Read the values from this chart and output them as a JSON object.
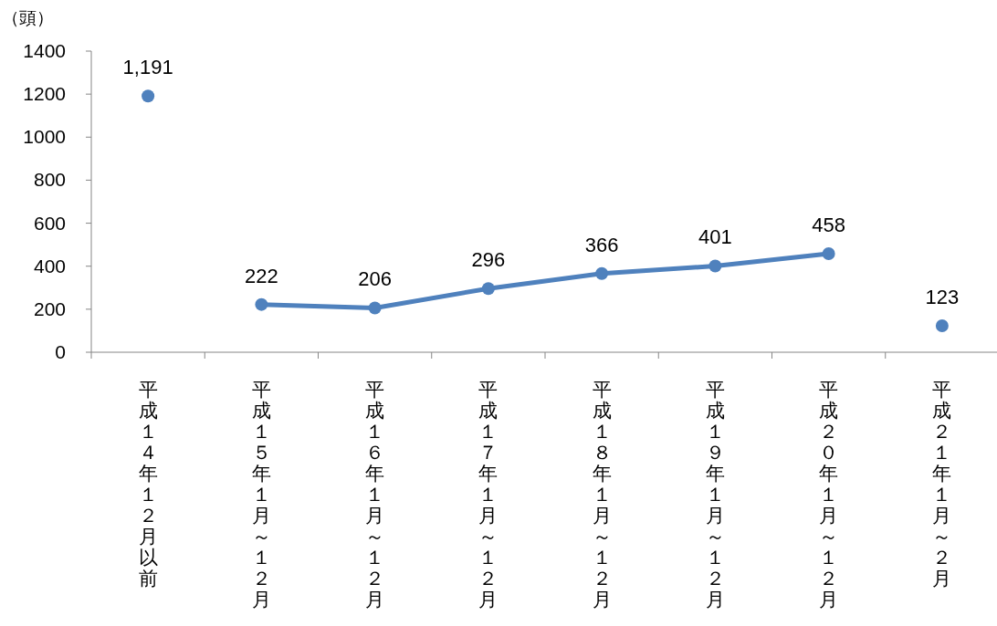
{
  "chart_data": {
    "type": "line",
    "ylabel": "（頭）",
    "categories": [
      "平成１４年１２月以前",
      "平成１５年１月～１２月",
      "平成１６年１月～１２月",
      "平成１７年１月～１２月",
      "平成１８年１月～１２月",
      "平成１９年１月～１２月",
      "平成２０年１月～１２月",
      "平成２１年１月～２月"
    ],
    "series": [
      {
        "type": "scatter",
        "color": "#4f81bd",
        "values": [
          1191,
          null,
          null,
          null,
          null,
          null,
          null,
          123
        ],
        "value_labels": [
          "1,191",
          null,
          null,
          null,
          null,
          null,
          null,
          "123"
        ]
      },
      {
        "type": "line",
        "color": "#4f81bd",
        "values": [
          null,
          222,
          206,
          296,
          366,
          401,
          458,
          null
        ]
      }
    ],
    "ylim": [
      0,
      1400
    ],
    "yticks": [
      0,
      200,
      400,
      600,
      800,
      1000,
      1200,
      1400
    ],
    "data_labels": true,
    "marker": "circle",
    "grid": false
  }
}
